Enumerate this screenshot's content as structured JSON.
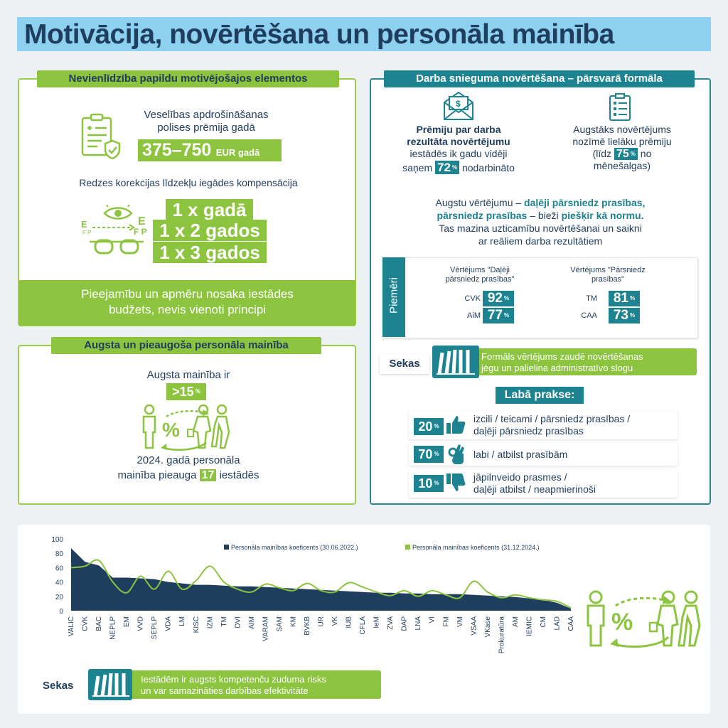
{
  "title": "Motivācija, novērtēšana un personāla mainība",
  "left_top": {
    "header": "Nevienlīdzība papildu motivējošajos elementos",
    "health_label_1": "Veselības apdrošināšanas",
    "health_label_2": "polises prēmija gadā",
    "health_value": "375–750",
    "health_unit": "EUR gadā",
    "vision_label": "Redzes korekcijas līdzekļu iegādes kompensācija",
    "vision_options": [
      "1 x gadā",
      "1 x 2 gados",
      "1 x 3 gados"
    ],
    "footer_line1": "Pieejamību un apmēru nosaka iestādes",
    "footer_line2": "budžets, nevis vienoti principi"
  },
  "left_bottom": {
    "header": "Augsta un pieaugoša personāla mainība",
    "text": "Augsta mainība ir",
    "value": ">15",
    "unit": "%",
    "line1": "2024. gadā personāla",
    "line2_a": "mainība pieauga",
    "line2_num": "17",
    "line2_b": "iestādēs"
  },
  "right": {
    "header": "Darba snieguma novērtēšana – pārsvarā formāla",
    "bonus_bold1": "Prēmiju par darba",
    "bonus_bold2": "rezultāta novērtējumu",
    "bonus_line3": "iestādēs ik gadu vidēji",
    "bonus_line4a": "saņem",
    "bonus_pct": "72",
    "bonus_line4b": "nodarbināto",
    "higher_1": "Augstāks novērtējums",
    "higher_2": "nozīmē lielāku prēmiju",
    "higher_3a": "(līdz",
    "higher_pct": "75",
    "higher_3b": "no",
    "higher_4": "mēnešalgas)",
    "statement_1a": "Augstu vērtējumu –",
    "statement_1b": "daļēji pārsniedz prasības,",
    "statement_2a": "pārsniedz prasības",
    "statement_2b": "– bieži",
    "statement_2c": "piešķir kā normu.",
    "statement_3": "Tas mazina uzticamību novērtēšanai un saikni",
    "statement_4": "ar reāliem darba rezultātiem",
    "examples_label": "Piemēri",
    "col1_title1": "Vērtējums \"Daļēji",
    "col1_title2": "pārsniedz prasības\"",
    "col2_title1": "Vērtējums \"Pārsniedz",
    "col2_title2": "prasības\"",
    "col1_rows": [
      {
        "name": "CVK",
        "value": "92"
      },
      {
        "name": "AiM",
        "value": "77"
      }
    ],
    "col2_rows": [
      {
        "name": "TM",
        "value": "81"
      },
      {
        "name": "CAA",
        "value": "73"
      }
    ],
    "sekas_label": "Sekas",
    "sekas_line1": "Formāls vērtējums zaudē novērtēšanas",
    "sekas_line2": "jēgu un palielina administratīvo slogu",
    "good_practice": "Labā prakse:",
    "practice": [
      {
        "pct": "20",
        "line1": "izcili / teicami / pārsniedz prasības /",
        "line2": "daļēji pārsniedz prasības"
      },
      {
        "pct": "70",
        "line1": "labi / atbilst prasībām",
        "line2": ""
      },
      {
        "pct": "10",
        "line1": "jāpilnveido prasmes /",
        "line2": "daļēji atbilst / neapmierinoši"
      }
    ],
    "pct_sign": "%"
  },
  "bottom": {
    "sekas_label": "Sekas",
    "sekas_line1": "Iestādēm ir augsts kompetenču zuduma risks",
    "sekas_line2": "un var samazināties darbības efektivitāte"
  },
  "colors": {
    "navy": "#1f3d5c",
    "green": "#8cc43f",
    "teal": "#1e8390",
    "light_blue": "#8dd0ef"
  },
  "chart_data": {
    "type": "area",
    "title": "",
    "ylim": [
      0,
      100
    ],
    "yticks": [
      0,
      20,
      40,
      60,
      80,
      100
    ],
    "categories": [
      "VALIC",
      "CVK",
      "BAC",
      "NEPLP",
      "EM",
      "VVD",
      "SEPLP",
      "VDA",
      "LM",
      "KISC",
      "IZM",
      "TM",
      "DVI",
      "AIM",
      "VARAM",
      "SAM",
      "KM",
      "BVKB",
      "UR",
      "VK",
      "IUB",
      "CFLA",
      "IeM",
      "ZVA",
      "DAP",
      "LNA",
      "VI",
      "FM",
      "VM",
      "VSAA",
      "VKase",
      "Prokuratūra",
      "AM",
      "IEMIC",
      "CM",
      "LAD",
      "CAA"
    ],
    "series": [
      {
        "name": "Personāla mainības koeficents (30.06.2022.)",
        "color": "#1f3d5c",
        "style": "area",
        "values": [
          87,
          68,
          63,
          46,
          46,
          45,
          44,
          40,
          38,
          36,
          36,
          35,
          34,
          34,
          33,
          32,
          31,
          30,
          29,
          28,
          27,
          26,
          25,
          25,
          24,
          24,
          23,
          23,
          23,
          22,
          21,
          20,
          19,
          17,
          15,
          11,
          3
        ]
      },
      {
        "name": "Personāla mainības koeficents (31.12.2024.)",
        "color": "#8cc43f",
        "style": "line",
        "values": [
          60,
          62,
          70,
          40,
          25,
          48,
          30,
          55,
          30,
          42,
          62,
          40,
          30,
          26,
          37,
          32,
          28,
          38,
          28,
          26,
          39,
          33,
          26,
          21,
          28,
          20,
          28,
          22,
          18,
          41,
          26,
          18,
          22,
          18,
          15,
          13,
          4
        ]
      }
    ]
  }
}
